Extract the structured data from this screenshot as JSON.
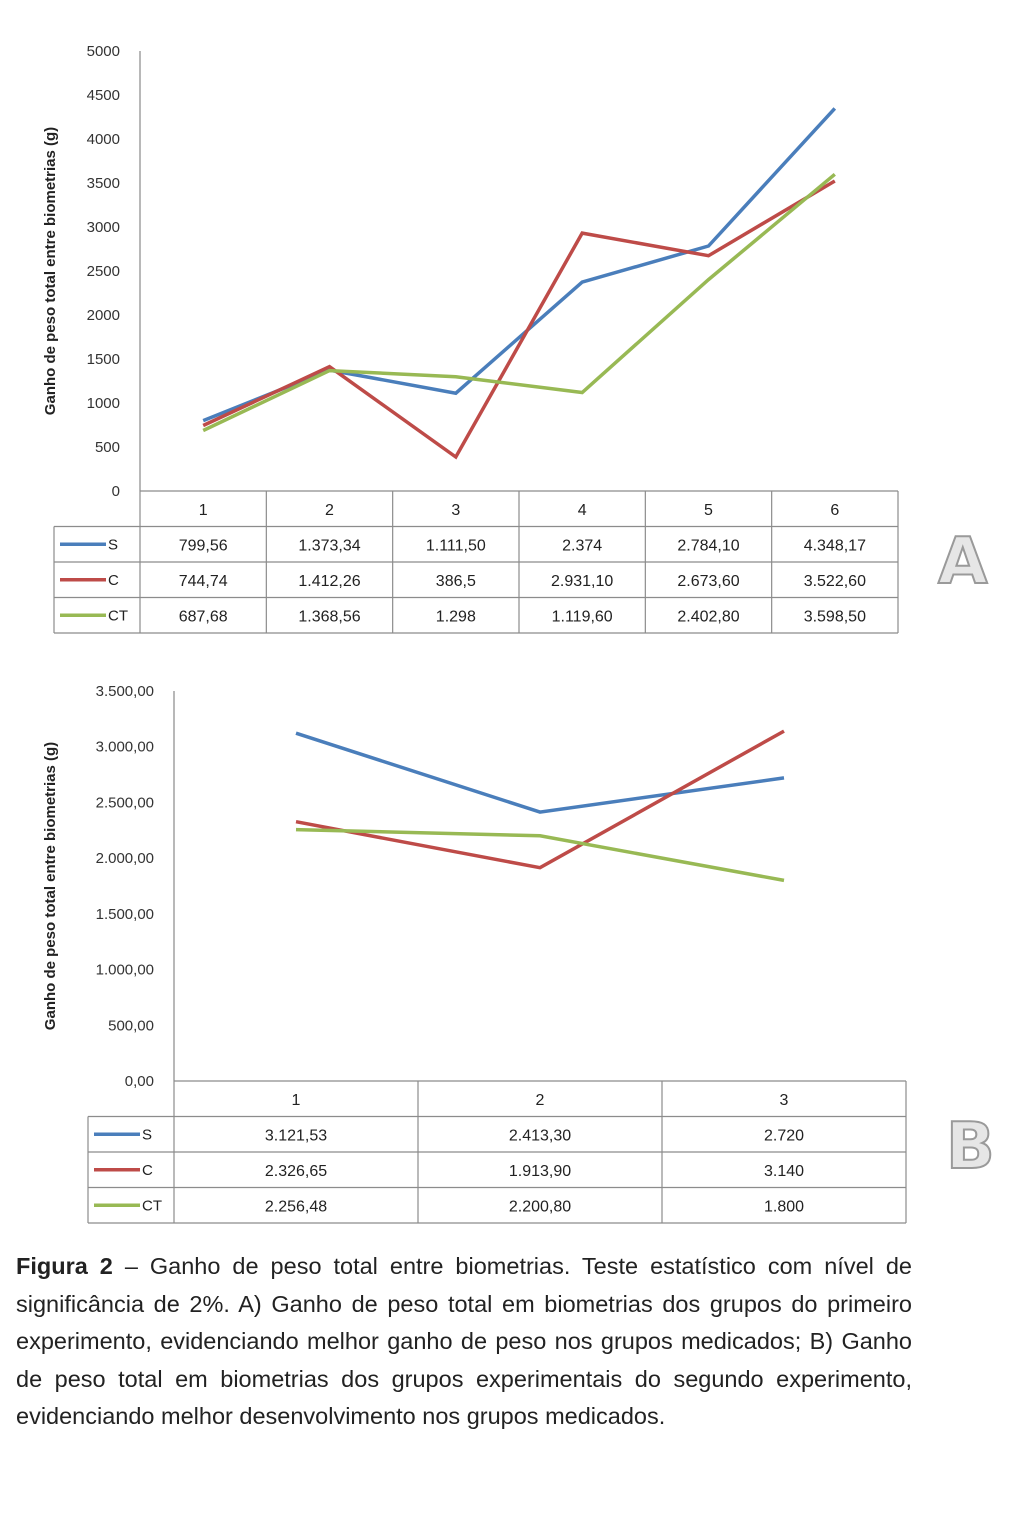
{
  "chart_data": [
    {
      "type": "line",
      "panel": "A",
      "ylabel": "Ganho de peso total entre biometrias (g)",
      "ylim": [
        0,
        5000
      ],
      "yticks": [
        "0",
        "500",
        "1000",
        "1500",
        "2000",
        "2500",
        "3000",
        "3500",
        "4000",
        "4500",
        "5000"
      ],
      "categories": [
        "1",
        "2",
        "3",
        "4",
        "5",
        "6"
      ],
      "grid": false,
      "legend": "data-table",
      "series": [
        {
          "name": "S",
          "color": "#4a7ebb",
          "values": [
            799.56,
            1373.34,
            1111.5,
            2374,
            2784.1,
            4348.17
          ],
          "labels": [
            "799,56",
            "1.373,34",
            "1.111,50",
            "2.374",
            "2.784,10",
            "4.348,17"
          ]
        },
        {
          "name": "C",
          "color": "#be4b48",
          "values": [
            744.74,
            1412.26,
            386.5,
            2931.1,
            2673.6,
            3522.6
          ],
          "labels": [
            "744,74",
            "1.412,26",
            "386,5",
            "2.931,10",
            "2.673,60",
            "3.522,60"
          ]
        },
        {
          "name": "CT",
          "color": "#98b954",
          "values": [
            687.68,
            1368.56,
            1298,
            1119.6,
            2402.8,
            3598.5
          ],
          "labels": [
            "687,68",
            "1.368,56",
            "1.298",
            "1.119,60",
            "2.402,80",
            "3.598,50"
          ]
        }
      ]
    },
    {
      "type": "line",
      "panel": "B",
      "ylabel": "Ganho de peso total entre biometrias (g)",
      "ylim": [
        0,
        3500
      ],
      "yticks": [
        "0,00",
        "500,00",
        "1.000,00",
        "1.500,00",
        "2.000,00",
        "2.500,00",
        "3.000,00",
        "3.500,00"
      ],
      "categories": [
        "1",
        "2",
        "3"
      ],
      "grid": false,
      "legend": "data-table",
      "series": [
        {
          "name": "S",
          "color": "#4a7ebb",
          "values": [
            3121.53,
            2413.3,
            2720
          ],
          "labels": [
            "3.121,53",
            "2.413,30",
            "2.720"
          ]
        },
        {
          "name": "C",
          "color": "#be4b48",
          "values": [
            2326.65,
            1913.9,
            3140
          ],
          "labels": [
            "2.326,65",
            "1.913,90",
            "3.140"
          ]
        },
        {
          "name": "CT",
          "color": "#98b954",
          "values": [
            2256.48,
            2200.8,
            1800
          ],
          "labels": [
            "2.256,48",
            "2.200,80",
            "1.800"
          ]
        }
      ]
    }
  ],
  "panel_labels": {
    "a": "A",
    "b": "B"
  },
  "caption": {
    "label": "Figura 2",
    "text": " – Ganho de peso total entre biometrias. Teste estatístico com nível de significância de 2%. A) Ganho de peso total em biometrias dos grupos do primeiro experimento, evidenciando melhor ganho de peso nos grupos medicados; B) Ganho de peso total em biometrias dos grupos experimentais do segundo experimento, evidenciando melhor desenvolvimento nos grupos medicados."
  }
}
